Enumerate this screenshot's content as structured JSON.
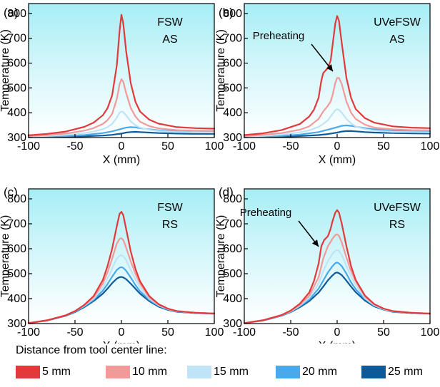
{
  "chart_data": [
    {
      "type": "line",
      "panel_label": "(a)",
      "annotation_lines": [
        "FSW",
        "AS"
      ],
      "arrow_annotation": "",
      "xlabel": "X (mm)",
      "ylabel": "Temperature (K)",
      "xlim": [
        -100,
        100
      ],
      "ylim": [
        300,
        840
      ],
      "xticks": [
        "-100",
        "-50",
        "0",
        "50",
        "100"
      ],
      "yticks": [
        "300",
        "400",
        "500",
        "600",
        "700",
        "800"
      ],
      "background": "gradient-cyan",
      "series": [
        {
          "name": "5 mm",
          "color": "#e23a3a",
          "x": [
            -100,
            -80,
            -60,
            -40,
            -30,
            -20,
            -15,
            -10,
            -5,
            -2,
            0,
            2,
            5,
            10,
            15,
            20,
            30,
            40,
            60,
            80,
            100
          ],
          "y": [
            309,
            315,
            324,
            343,
            360,
            390,
            418,
            470,
            590,
            730,
            795,
            760,
            650,
            520,
            445,
            405,
            372,
            356,
            342,
            338,
            336
          ]
        },
        {
          "name": "10 mm",
          "color": "#f29a9a",
          "x": [
            -100,
            -80,
            -60,
            -40,
            -30,
            -20,
            -15,
            -10,
            -5,
            -2,
            0,
            2,
            5,
            10,
            15,
            20,
            30,
            40,
            60,
            80,
            100
          ],
          "y": [
            306,
            310,
            316,
            328,
            338,
            355,
            370,
            395,
            455,
            515,
            535,
            525,
            480,
            420,
            385,
            364,
            346,
            337,
            330,
            328,
            327
          ]
        },
        {
          "name": "15 mm",
          "color": "#bfe3f7",
          "x": [
            -100,
            -80,
            -60,
            -40,
            -30,
            -20,
            -15,
            -10,
            -5,
            -2,
            0,
            2,
            5,
            10,
            15,
            20,
            30,
            40,
            60,
            80,
            100
          ],
          "y": [
            304,
            307,
            311,
            318,
            324,
            334,
            342,
            355,
            380,
            400,
            405,
            402,
            390,
            365,
            350,
            340,
            331,
            326,
            322,
            321,
            320
          ]
        },
        {
          "name": "20 mm",
          "color": "#4aa9ea",
          "x": [
            -100,
            -80,
            -60,
            -40,
            -20,
            -10,
            0,
            5,
            10,
            15,
            20,
            30,
            40,
            60,
            80,
            100
          ],
          "y": [
            302,
            304,
            306,
            310,
            318,
            325,
            335,
            340,
            342,
            341,
            338,
            333,
            329,
            324,
            322,
            321
          ]
        },
        {
          "name": "25 mm",
          "color": "#0d5a9b",
          "x": [
            -100,
            -80,
            -60,
            -40,
            -20,
            -10,
            0,
            5,
            10,
            15,
            20,
            30,
            40,
            60,
            80,
            100
          ],
          "y": [
            301,
            302,
            303,
            305,
            308,
            311,
            316,
            320,
            322,
            323,
            322,
            320,
            318,
            316,
            315,
            315
          ]
        }
      ]
    },
    {
      "type": "line",
      "panel_label": "(b)",
      "annotation_lines": [
        "UVeFSW",
        "AS"
      ],
      "arrow_annotation": "Preheating",
      "xlabel": "X (mm)",
      "ylabel": "Temperature (K)",
      "xlim": [
        -100,
        100
      ],
      "ylim": [
        300,
        840
      ],
      "xticks": [
        "-100",
        "-50",
        "0",
        "50",
        "100"
      ],
      "yticks": [
        "300",
        "400",
        "500",
        "600",
        "700",
        "800"
      ],
      "background": "gradient-cyan",
      "series": [
        {
          "name": "5 mm",
          "color": "#e23a3a",
          "x": [
            -100,
            -80,
            -60,
            -40,
            -30,
            -25,
            -20,
            -17,
            -15,
            -12,
            -10,
            -7,
            -5,
            -2,
            0,
            2,
            5,
            10,
            15,
            20,
            30,
            40,
            60,
            80,
            100
          ],
          "y": [
            310,
            317,
            330,
            355,
            385,
            412,
            460,
            530,
            560,
            572,
            580,
            610,
            670,
            760,
            790,
            770,
            680,
            540,
            460,
            415,
            378,
            360,
            345,
            340,
            338
          ]
        },
        {
          "name": "10 mm",
          "color": "#f29a9a",
          "x": [
            -100,
            -80,
            -60,
            -40,
            -30,
            -20,
            -15,
            -10,
            -7,
            -5,
            -2,
            0,
            2,
            5,
            10,
            15,
            20,
            30,
            40,
            60,
            80,
            100
          ],
          "y": [
            306,
            311,
            318,
            332,
            345,
            375,
            405,
            428,
            445,
            470,
            520,
            540,
            540,
            515,
            445,
            400,
            375,
            352,
            340,
            333,
            330,
            329
          ]
        },
        {
          "name": "15 mm",
          "color": "#bfe3f7",
          "x": [
            -100,
            -80,
            -60,
            -40,
            -30,
            -20,
            -15,
            -10,
            -5,
            -2,
            0,
            2,
            5,
            10,
            15,
            20,
            30,
            40,
            60,
            80,
            100
          ],
          "y": [
            304,
            307,
            312,
            321,
            329,
            343,
            355,
            370,
            395,
            410,
            414,
            412,
            400,
            375,
            357,
            345,
            334,
            328,
            323,
            322,
            321
          ]
        },
        {
          "name": "20 mm",
          "color": "#4aa9ea",
          "x": [
            -100,
            -80,
            -60,
            -40,
            -20,
            -10,
            0,
            5,
            10,
            15,
            20,
            30,
            40,
            60,
            80,
            100
          ],
          "y": [
            302,
            304,
            307,
            312,
            322,
            332,
            342,
            347,
            349,
            347,
            344,
            338,
            333,
            327,
            324,
            323
          ]
        },
        {
          "name": "25 mm",
          "color": "#0d5a9b",
          "x": [
            -100,
            -80,
            -60,
            -40,
            -20,
            -10,
            0,
            5,
            10,
            15,
            20,
            30,
            40,
            60,
            80,
            100
          ],
          "y": [
            301,
            302,
            303,
            306,
            310,
            314,
            320,
            324,
            326,
            326,
            325,
            322,
            320,
            318,
            317,
            316
          ]
        }
      ]
    },
    {
      "type": "line",
      "panel_label": "(c)",
      "annotation_lines": [
        "FSW",
        "RS"
      ],
      "arrow_annotation": "",
      "xlabel": "X (mm)",
      "ylabel": "Temperature (K)",
      "xlim": [
        -100,
        100
      ],
      "ylim": [
        300,
        840
      ],
      "xticks": [
        "-100",
        "-50",
        "0",
        "50",
        "100"
      ],
      "yticks": [
        "300",
        "400",
        "500",
        "600",
        "700",
        "800"
      ],
      "background": "gradient-cyan",
      "series": [
        {
          "name": "5 mm",
          "color": "#e23a3a",
          "x": [
            -100,
            -80,
            -60,
            -50,
            -40,
            -30,
            -20,
            -15,
            -10,
            -5,
            -2,
            0,
            2,
            5,
            10,
            15,
            20,
            30,
            40,
            50,
            60,
            80,
            100
          ],
          "y": [
            302,
            313,
            333,
            350,
            375,
            410,
            475,
            530,
            600,
            690,
            740,
            748,
            735,
            680,
            590,
            520,
            470,
            410,
            378,
            360,
            350,
            343,
            340
          ]
        },
        {
          "name": "10 mm",
          "color": "#f29a9a",
          "x": [
            -100,
            -80,
            -60,
            -50,
            -40,
            -30,
            -20,
            -15,
            -10,
            -5,
            -2,
            0,
            2,
            5,
            10,
            15,
            20,
            30,
            40,
            50,
            60,
            80,
            100
          ],
          "y": [
            302,
            313,
            333,
            350,
            374,
            405,
            460,
            505,
            560,
            620,
            640,
            642,
            635,
            605,
            550,
            500,
            460,
            405,
            376,
            359,
            350,
            343,
            340
          ]
        },
        {
          "name": "15 mm",
          "color": "#bfe3f7",
          "x": [
            -100,
            -80,
            -60,
            -50,
            -40,
            -30,
            -20,
            -15,
            -10,
            -5,
            -2,
            0,
            2,
            5,
            10,
            15,
            20,
            30,
            40,
            50,
            60,
            80,
            100
          ],
          "y": [
            302,
            313,
            333,
            350,
            372,
            400,
            445,
            480,
            520,
            560,
            572,
            574,
            570,
            555,
            515,
            478,
            445,
            400,
            374,
            358,
            349,
            343,
            340
          ]
        },
        {
          "name": "20 mm",
          "color": "#4aa9ea",
          "x": [
            -100,
            -80,
            -60,
            -50,
            -40,
            -30,
            -20,
            -15,
            -10,
            -5,
            -2,
            0,
            2,
            5,
            10,
            15,
            20,
            30,
            40,
            50,
            60,
            80,
            100
          ],
          "y": [
            302,
            313,
            332,
            348,
            369,
            395,
            432,
            458,
            488,
            515,
            524,
            526,
            523,
            512,
            485,
            455,
            430,
            395,
            371,
            357,
            348,
            343,
            340
          ]
        },
        {
          "name": "25 mm",
          "color": "#0d5a9b",
          "x": [
            -100,
            -80,
            -60,
            -50,
            -40,
            -30,
            -20,
            -15,
            -10,
            -5,
            -2,
            0,
            2,
            5,
            10,
            15,
            20,
            30,
            40,
            50,
            60,
            80,
            100
          ],
          "y": [
            302,
            312,
            331,
            346,
            366,
            390,
            420,
            440,
            462,
            480,
            486,
            487,
            485,
            478,
            460,
            440,
            420,
            390,
            368,
            355,
            347,
            342,
            340
          ]
        }
      ]
    },
    {
      "type": "line",
      "panel_label": "(d)",
      "annotation_lines": [
        "UVeFSW",
        "RS"
      ],
      "arrow_annotation": "Preheating",
      "xlabel": "X (mm)",
      "ylabel": "Temperature (K)",
      "xlim": [
        -100,
        100
      ],
      "ylim": [
        300,
        840
      ],
      "xticks": [
        "-100",
        "-50",
        "0",
        "50",
        "100"
      ],
      "yticks": [
        "300",
        "400",
        "500",
        "600",
        "700",
        "800"
      ],
      "background": "gradient-cyan",
      "series": [
        {
          "name": "5 mm",
          "color": "#e23a3a",
          "x": [
            -100,
            -80,
            -60,
            -50,
            -40,
            -30,
            -25,
            -20,
            -17,
            -14,
            -10,
            -7,
            -5,
            -2,
            0,
            2,
            5,
            10,
            15,
            20,
            30,
            40,
            50,
            60,
            80,
            100
          ],
          "y": [
            302,
            313,
            334,
            352,
            380,
            425,
            470,
            540,
            610,
            635,
            650,
            680,
            710,
            745,
            755,
            745,
            700,
            610,
            530,
            475,
            412,
            378,
            360,
            350,
            343,
            340
          ]
        },
        {
          "name": "10 mm",
          "color": "#f29a9a",
          "x": [
            -100,
            -80,
            -60,
            -50,
            -40,
            -30,
            -20,
            -15,
            -10,
            -5,
            -2,
            0,
            2,
            5,
            10,
            15,
            20,
            30,
            40,
            50,
            60,
            80,
            100
          ],
          "y": [
            302,
            313,
            333,
            350,
            376,
            412,
            485,
            560,
            610,
            640,
            655,
            658,
            652,
            625,
            565,
            510,
            470,
            408,
            377,
            360,
            350,
            343,
            340
          ]
        },
        {
          "name": "15 mm",
          "color": "#bfe3f7",
          "x": [
            -100,
            -80,
            -60,
            -50,
            -40,
            -30,
            -20,
            -15,
            -10,
            -5,
            -2,
            0,
            2,
            5,
            10,
            15,
            20,
            30,
            40,
            50,
            60,
            80,
            100
          ],
          "y": [
            302,
            313,
            333,
            349,
            373,
            404,
            460,
            510,
            550,
            580,
            592,
            595,
            591,
            575,
            530,
            490,
            455,
            402,
            374,
            358,
            349,
            343,
            340
          ]
        },
        {
          "name": "20 mm",
          "color": "#4aa9ea",
          "x": [
            -100,
            -80,
            -60,
            -50,
            -40,
            -30,
            -20,
            -15,
            -10,
            -5,
            -2,
            0,
            2,
            5,
            10,
            15,
            20,
            30,
            40,
            50,
            60,
            80,
            100
          ],
          "y": [
            302,
            313,
            332,
            348,
            370,
            396,
            440,
            472,
            505,
            530,
            542,
            545,
            541,
            530,
            500,
            465,
            438,
            398,
            372,
            357,
            348,
            343,
            340
          ]
        },
        {
          "name": "25 mm",
          "color": "#0d5a9b",
          "x": [
            -100,
            -80,
            -60,
            -50,
            -40,
            -30,
            -20,
            -15,
            -10,
            -5,
            -2,
            0,
            2,
            5,
            10,
            15,
            20,
            30,
            40,
            50,
            60,
            80,
            100
          ],
          "y": [
            302,
            312,
            331,
            346,
            366,
            390,
            424,
            448,
            473,
            493,
            503,
            505,
            502,
            494,
            472,
            448,
            426,
            392,
            369,
            356,
            347,
            342,
            340
          ]
        }
      ]
    }
  ],
  "legend": {
    "title": "Distance from tool center line:",
    "items": [
      {
        "label": "5 mm",
        "color": "#e23a3a"
      },
      {
        "label": "10 mm",
        "color": "#f29a9a"
      },
      {
        "label": "15 mm",
        "color": "#bfe3f7"
      },
      {
        "label": "20 mm",
        "color": "#4aa9ea"
      },
      {
        "label": "25 mm",
        "color": "#0d5a9b"
      }
    ]
  }
}
